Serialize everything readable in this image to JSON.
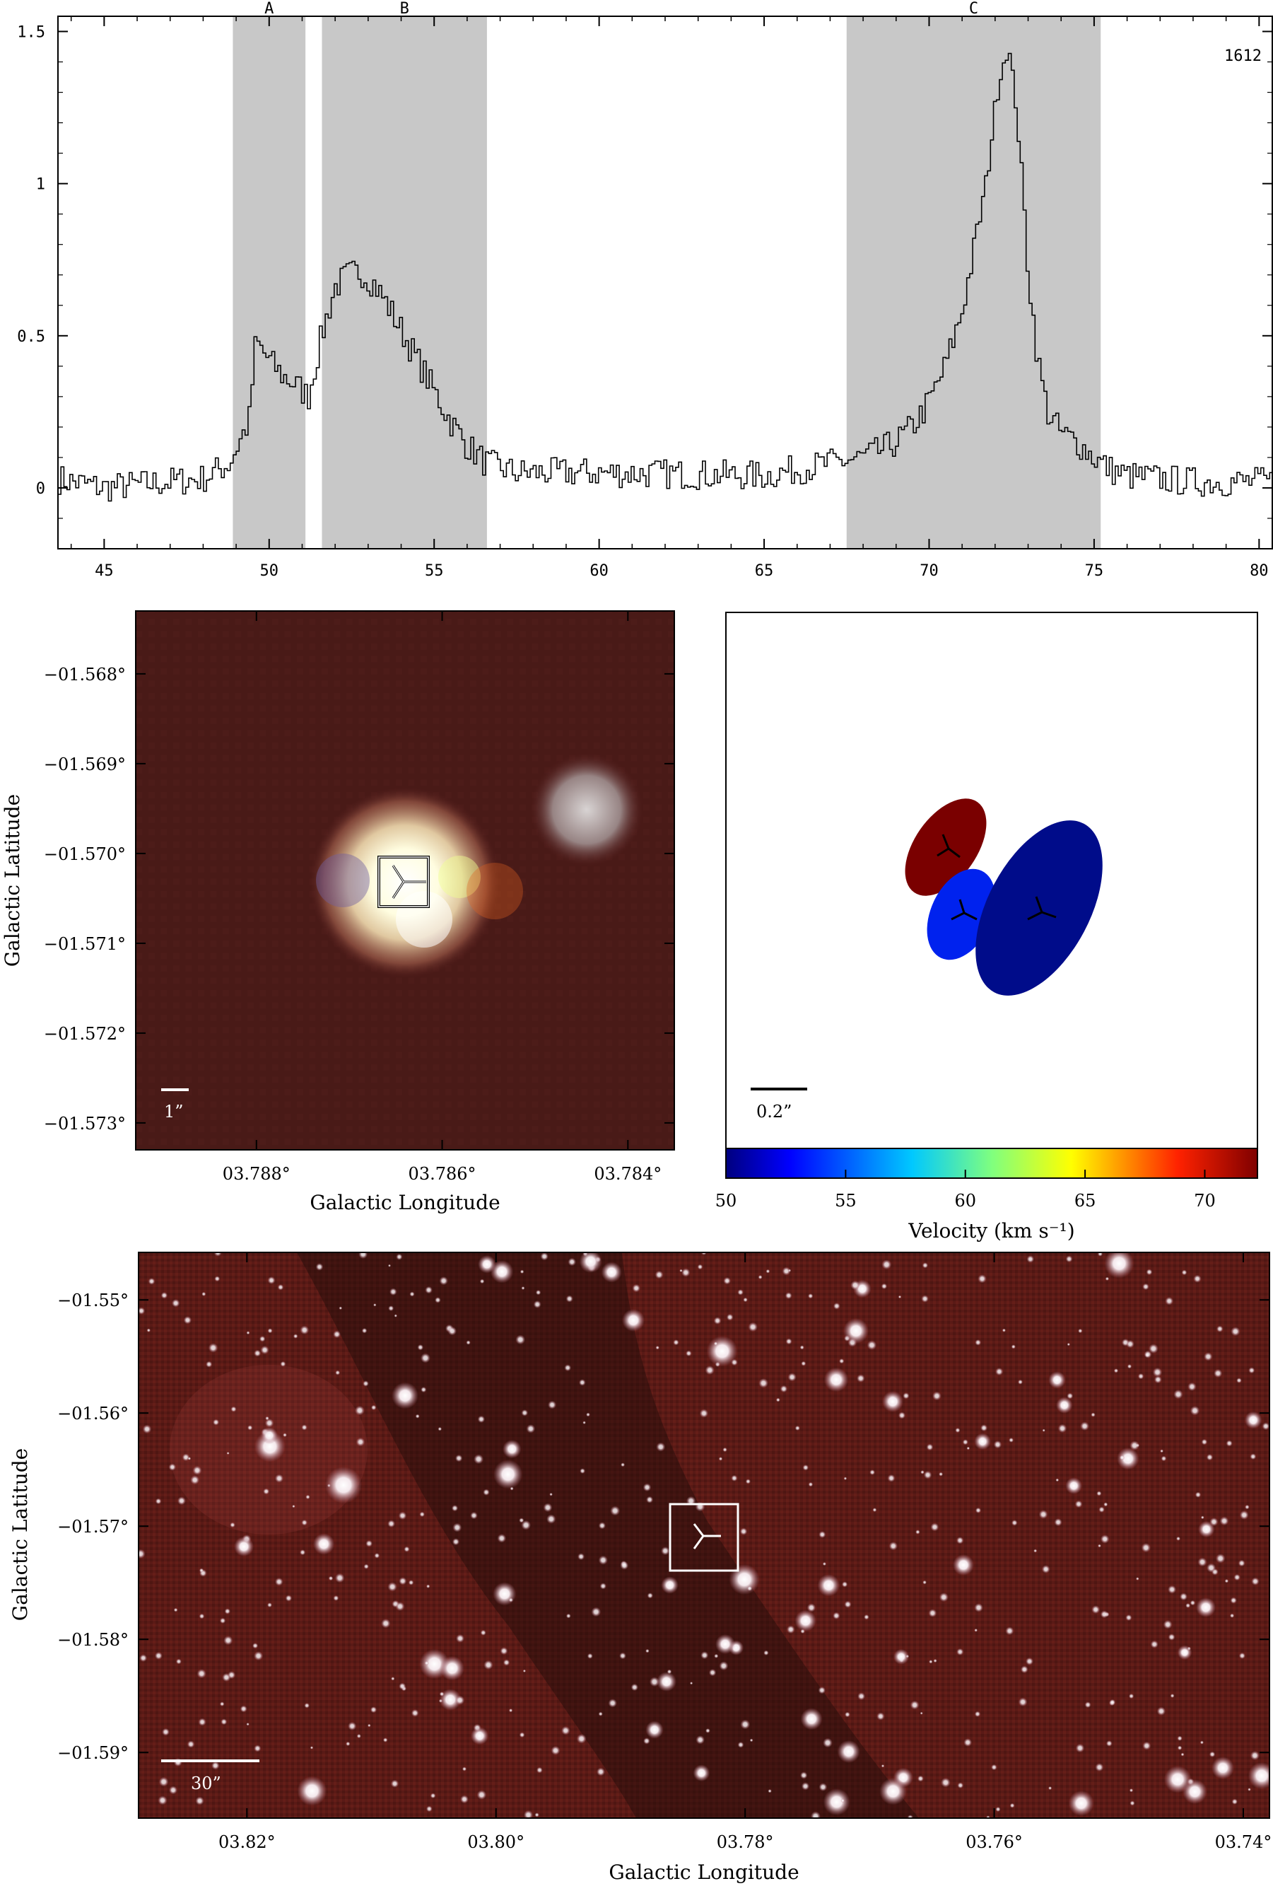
{
  "chart_data": [
    {
      "type": "line",
      "step": true,
      "annotation": "1612",
      "xlim": [
        43.6,
        80.4
      ],
      "ylim": [
        -0.2,
        1.55
      ],
      "xticks": [
        45,
        50,
        55,
        60,
        65,
        70,
        75,
        80
      ],
      "yticks": [
        0,
        0.5,
        1,
        1.5
      ],
      "ytick_labels": [
        "0",
        "0.5",
        "1",
        "1.5"
      ],
      "regions": [
        {
          "label": "A",
          "x0": 48.9,
          "x1": 51.1
        },
        {
          "label": "B",
          "x0": 51.6,
          "x1": 56.6
        },
        {
          "label": "C",
          "x0": 67.5,
          "x1": 75.2
        }
      ],
      "spectrum": {
        "x": [
          43.6,
          45,
          47,
          48,
          48.8,
          49.4,
          49.6,
          50.0,
          50.4,
          50.8,
          51.2,
          51.6,
          52.0,
          52.4,
          52.8,
          53.2,
          53.6,
          54.0,
          54.5,
          55.0,
          55.5,
          56.0,
          56.6,
          57.5,
          60,
          65,
          67,
          68,
          68.5,
          69,
          69.5,
          70,
          70.5,
          71,
          71.4,
          71.8,
          72.0,
          72.2,
          72.4,
          72.6,
          72.8,
          73.0,
          73.3,
          73.6,
          74,
          74.5,
          75,
          75.5,
          76,
          78,
          80.4
        ],
        "y": [
          0.03,
          0.0,
          0.02,
          0.03,
          0.08,
          0.22,
          0.48,
          0.42,
          0.37,
          0.34,
          0.3,
          0.5,
          0.66,
          0.7,
          0.71,
          0.67,
          0.6,
          0.52,
          0.42,
          0.32,
          0.22,
          0.14,
          0.08,
          0.05,
          0.05,
          0.04,
          0.08,
          0.1,
          0.12,
          0.15,
          0.2,
          0.28,
          0.4,
          0.58,
          0.8,
          1.05,
          1.25,
          1.38,
          1.45,
          1.3,
          1.05,
          0.72,
          0.42,
          0.25,
          0.18,
          0.15,
          0.1,
          0.06,
          0.04,
          0.02,
          0.02
        ]
      }
    },
    {
      "type": "heatmap",
      "image": "rgb-composite-zoom",
      "scale_bar": "1”",
      "xlabel": "Galactic Longitude",
      "ylabel": "Galactic Latitude",
      "xlim": [
        3.7893,
        3.7835
      ],
      "ylim": [
        -1.5733,
        -1.5673
      ],
      "xticks": [
        3.788,
        3.786,
        3.784
      ],
      "xtick_labels": [
        "03.788°",
        "03.786°",
        "03.784°"
      ],
      "yticks": [
        -1.568,
        -1.569,
        -1.57,
        -1.571,
        -1.572,
        -1.573
      ],
      "ytick_labels": [
        "−01.568°",
        "−01.569°",
        "−01.570°",
        "−01.571°",
        "−01.572°",
        "−01.573°"
      ]
    },
    {
      "type": "scatter",
      "image": "maser-spot-ellipses",
      "scale_bar": "0.2”",
      "colorbar": {
        "label": "Velocity (km s⁻¹)",
        "range": [
          50,
          72.2
        ],
        "ticks": [
          50,
          55,
          60,
          65,
          70
        ],
        "tick_labels": [
          "50",
          "55",
          "60",
          "65",
          "70"
        ]
      },
      "spots": [
        {
          "velocity": 71,
          "color": "#7a0000"
        },
        {
          "velocity": 51,
          "color": "#0022ee"
        },
        {
          "velocity": 50,
          "color": "#000c8a"
        }
      ]
    },
    {
      "type": "heatmap",
      "image": "rgb-composite-wide",
      "scale_bar": "30”",
      "xlabel": "Galactic Longitude",
      "ylabel": "Galactic Latitude",
      "xlim": [
        3.8287,
        3.7379
      ],
      "ylim": [
        -1.5958,
        -1.5458
      ],
      "xticks": [
        3.82,
        3.8,
        3.78,
        3.76,
        3.74
      ],
      "xtick_labels": [
        "03.82°",
        "03.80°",
        "03.78°",
        "03.76°",
        "03.74°"
      ],
      "yticks": [
        -1.55,
        -1.56,
        -1.57,
        -1.58,
        -1.59
      ],
      "ytick_labels": [
        "−01.55°",
        "−01.56°",
        "−01.57°",
        "−01.58°",
        "−01.59°"
      ]
    }
  ]
}
